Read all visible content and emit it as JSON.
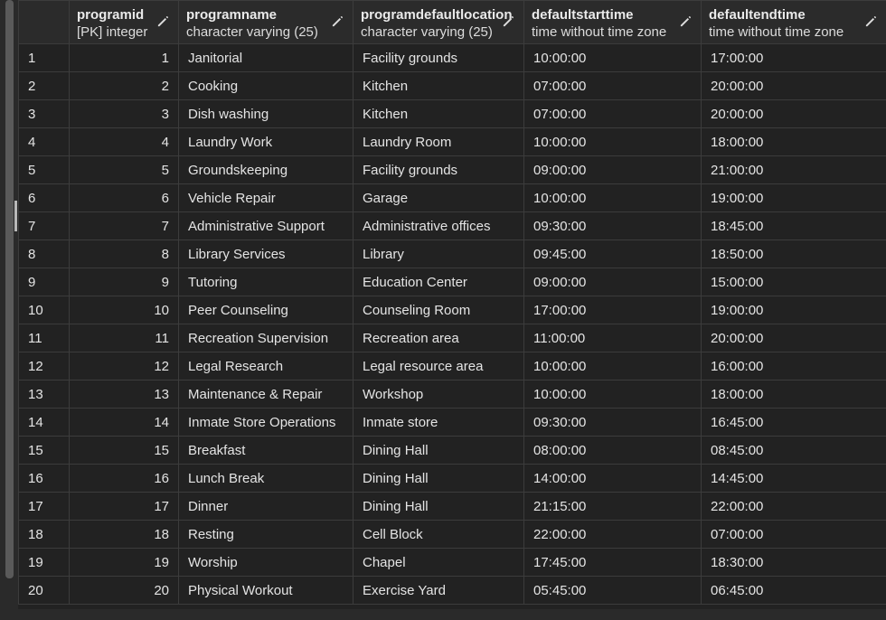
{
  "columns": [
    {
      "name": "",
      "type": ""
    },
    {
      "name": "programid",
      "type": "[PK] integer"
    },
    {
      "name": "programname",
      "type": "character varying (25)"
    },
    {
      "name": "programdefaultlocation",
      "type": "character varying (25)"
    },
    {
      "name": "defaultstarttime",
      "type": "time without time zone"
    },
    {
      "name": "defaultendtime",
      "type": "time without time zone"
    }
  ],
  "icons": {
    "edit": "pencil-icon"
  },
  "colors": {
    "background": "#222222",
    "header": "#2b2b2b",
    "border": "#3c3c3c",
    "text": "#e4e4e4"
  },
  "rows": [
    {
      "rownum": "1",
      "programid": "1",
      "programname": "Janitorial",
      "location": "Facility grounds",
      "start": "10:00:00",
      "end": "17:00:00"
    },
    {
      "rownum": "2",
      "programid": "2",
      "programname": "Cooking",
      "location": "Kitchen",
      "start": "07:00:00",
      "end": "20:00:00"
    },
    {
      "rownum": "3",
      "programid": "3",
      "programname": "Dish washing",
      "location": "Kitchen",
      "start": "07:00:00",
      "end": "20:00:00"
    },
    {
      "rownum": "4",
      "programid": "4",
      "programname": "Laundry Work",
      "location": "Laundry Room",
      "start": "10:00:00",
      "end": "18:00:00"
    },
    {
      "rownum": "5",
      "programid": "5",
      "programname": "Groundskeeping",
      "location": "Facility grounds",
      "start": "09:00:00",
      "end": "21:00:00"
    },
    {
      "rownum": "6",
      "programid": "6",
      "programname": "Vehicle Repair",
      "location": "Garage",
      "start": "10:00:00",
      "end": "19:00:00"
    },
    {
      "rownum": "7",
      "programid": "7",
      "programname": "Administrative Support",
      "location": "Administrative offices",
      "start": "09:30:00",
      "end": "18:45:00"
    },
    {
      "rownum": "8",
      "programid": "8",
      "programname": "Library Services",
      "location": "Library",
      "start": "09:45:00",
      "end": "18:50:00"
    },
    {
      "rownum": "9",
      "programid": "9",
      "programname": "Tutoring",
      "location": "Education Center",
      "start": "09:00:00",
      "end": "15:00:00"
    },
    {
      "rownum": "10",
      "programid": "10",
      "programname": "Peer Counseling",
      "location": "Counseling Room",
      "start": "17:00:00",
      "end": "19:00:00"
    },
    {
      "rownum": "11",
      "programid": "11",
      "programname": "Recreation Supervision",
      "location": "Recreation area",
      "start": "11:00:00",
      "end": "20:00:00"
    },
    {
      "rownum": "12",
      "programid": "12",
      "programname": "Legal Research",
      "location": "Legal resource area",
      "start": "10:00:00",
      "end": "16:00:00"
    },
    {
      "rownum": "13",
      "programid": "13",
      "programname": "Maintenance & Repair",
      "location": "Workshop",
      "start": "10:00:00",
      "end": "18:00:00"
    },
    {
      "rownum": "14",
      "programid": "14",
      "programname": "Inmate Store Operations",
      "location": "Inmate store",
      "start": "09:30:00",
      "end": "16:45:00"
    },
    {
      "rownum": "15",
      "programid": "15",
      "programname": "Breakfast",
      "location": "Dining Hall",
      "start": "08:00:00",
      "end": "08:45:00"
    },
    {
      "rownum": "16",
      "programid": "16",
      "programname": "Lunch Break",
      "location": "Dining Hall",
      "start": "14:00:00",
      "end": "14:45:00"
    },
    {
      "rownum": "17",
      "programid": "17",
      "programname": "Dinner",
      "location": "Dining Hall",
      "start": "21:15:00",
      "end": "22:00:00"
    },
    {
      "rownum": "18",
      "programid": "18",
      "programname": "Resting",
      "location": "Cell Block",
      "start": "22:00:00",
      "end": "07:00:00"
    },
    {
      "rownum": "19",
      "programid": "19",
      "programname": "Worship",
      "location": "Chapel",
      "start": "17:45:00",
      "end": "18:30:00"
    },
    {
      "rownum": "20",
      "programid": "20",
      "programname": "Physical Workout",
      "location": "Exercise Yard",
      "start": "05:45:00",
      "end": "06:45:00"
    }
  ]
}
